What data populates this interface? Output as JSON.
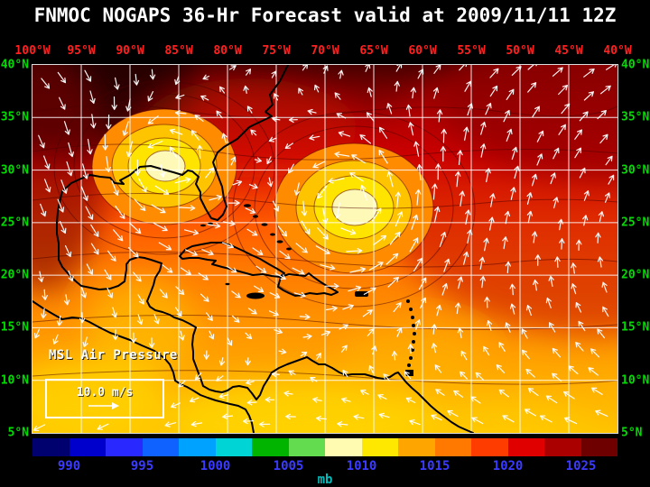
{
  "title": "FNMOC NOGAPS 36-Hr Forecast valid at 2009/11/11 12Z",
  "axes": {
    "lon_labels": [
      "100°W",
      "95°W",
      "90°W",
      "85°W",
      "80°W",
      "75°W",
      "70°W",
      "65°W",
      "60°W",
      "55°W",
      "50°W",
      "45°W",
      "40°W"
    ],
    "lat_labels": [
      "40°N",
      "35°N",
      "30°N",
      "25°N",
      "20°N",
      "15°N",
      "10°N",
      "5°N"
    ],
    "lon_label_color": "#ff2020",
    "lat_label_color": "#00dd00"
  },
  "map": {
    "field_label": "MSL Air Pressure",
    "wind_scale_label": "10.0 m/s",
    "grid_color": "#ffffff",
    "coastline_color": "#000000",
    "arrow_color": "#ffffff"
  },
  "colorbar": {
    "unit_label": "mb",
    "tick_labels": [
      "990",
      "995",
      "1000",
      "1005",
      "1010",
      "1015",
      "1020",
      "1025"
    ],
    "tick_label_color": "#3b3bff",
    "unit_label_color": "#00bcbc",
    "segment_colors": [
      "#00006e",
      "#0000cd",
      "#2929ff",
      "#0f62ff",
      "#00a2ff",
      "#00d4d4",
      "#00b400",
      "#64dc50",
      "#fffbb0",
      "#ffe800",
      "#ffa500",
      "#ff7800",
      "#ff3c00",
      "#e10000",
      "#aa0000",
      "#6e0000"
    ]
  },
  "chart_data": {
    "type": "heatmap",
    "title": "MSL Air Pressure",
    "units": "mb",
    "x_axis": {
      "label": "longitude",
      "ticks": [
        "100°W",
        "95°W",
        "90°W",
        "85°W",
        "80°W",
        "75°W",
        "70°W",
        "65°W",
        "60°W",
        "55°W",
        "50°W",
        "45°W",
        "40°W"
      ]
    },
    "y_axis": {
      "label": "latitude",
      "ticks": [
        "40°N",
        "35°N",
        "30°N",
        "25°N",
        "20°N",
        "15°N",
        "10°N",
        "5°N"
      ]
    },
    "colorbar_ticks_mb": [
      990,
      995,
      1000,
      1005,
      1010,
      1015,
      1020,
      1025
    ],
    "colorbar_range_mb": [
      987.5,
      1027.5
    ],
    "pressure_pattern": [
      {
        "region": "northern band 35-40N",
        "approx_mb": "1020-1026"
      },
      {
        "region": "closed low near 86W 30N",
        "approx_mb": "1008-1010"
      },
      {
        "region": "closed low near 67W 27N",
        "approx_mb": "1008-1010"
      },
      {
        "region": "tropics 5-15N",
        "approx_mb": "1008-1014"
      }
    ],
    "overlay": "wind vector field with 10.0 m/s reference arrow"
  }
}
